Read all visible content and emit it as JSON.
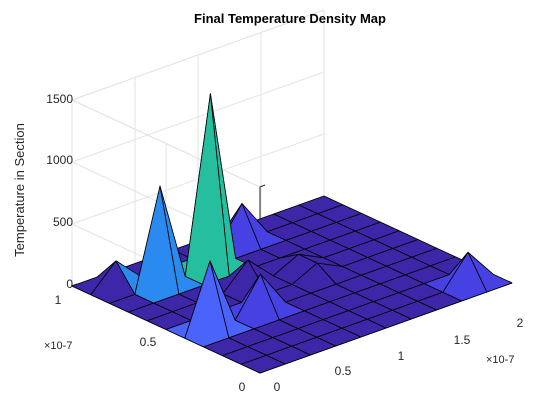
{
  "chart_data": {
    "type": "surface",
    "title": "Final Temperature Density Map",
    "xlabel": "",
    "ylabel": "",
    "zlabel": "Temperature in Section",
    "x": [
      0,
      2e-08,
      4e-08,
      6e-08,
      8e-08,
      1e-07,
      1.2e-07,
      1.4e-07,
      1.6e-07,
      1.8e-07,
      2e-07
    ],
    "y": [
      0,
      1e-08,
      2e-08,
      3e-08,
      4e-08,
      5e-08,
      6e-08,
      7e-08,
      8e-08,
      9e-08,
      1e-07
    ],
    "xlim": [
      0,
      2e-07
    ],
    "ylim": [
      0,
      1e-07
    ],
    "zlim": [
      0,
      1500
    ],
    "x_ticks": [
      "0",
      "0.5",
      "1",
      "1.5",
      "2"
    ],
    "y_ticks": [
      "0",
      "0.5",
      "1"
    ],
    "z_ticks": [
      "0",
      "500",
      "1000",
      "1500"
    ],
    "x_exponent": "×10-7",
    "y_exponent": "×10-7",
    "z_rows": [
      [
        0,
        0,
        0,
        0,
        0,
        0,
        0,
        0,
        0,
        0,
        0
      ],
      [
        0,
        0,
        0,
        0,
        0,
        0,
        0,
        0,
        0,
        250,
        0
      ],
      [
        0,
        0,
        0,
        0,
        0,
        0,
        0,
        0,
        0,
        0,
        0
      ],
      [
        0,
        0,
        0,
        0,
        0,
        0,
        0,
        0,
        0,
        0,
        0
      ],
      [
        0,
        550,
        0,
        300,
        0,
        0,
        0,
        0,
        0,
        0,
        0
      ],
      [
        0,
        0,
        0,
        0,
        0,
        0,
        100,
        0,
        0,
        0,
        0
      ],
      [
        0,
        0,
        0,
        0,
        200,
        0,
        100,
        0,
        0,
        0,
        0
      ],
      [
        0,
        0,
        0,
        0,
        0,
        0,
        0,
        0,
        0,
        0,
        0
      ],
      [
        0,
        0,
        800,
        0,
        1400,
        0,
        0,
        0,
        0,
        0,
        0
      ],
      [
        0,
        200,
        0,
        0,
        0,
        0,
        300,
        0,
        0,
        0,
        0
      ],
      [
        0,
        0,
        0,
        0,
        0,
        0,
        0,
        0,
        0,
        0,
        0
      ]
    ],
    "colormap": [
      "#3e26a8",
      "#4741e3",
      "#4a63fb",
      "#2a8aef",
      "#17a9cf",
      "#00b5c4",
      "#25bfa0"
    ],
    "grid": true
  }
}
